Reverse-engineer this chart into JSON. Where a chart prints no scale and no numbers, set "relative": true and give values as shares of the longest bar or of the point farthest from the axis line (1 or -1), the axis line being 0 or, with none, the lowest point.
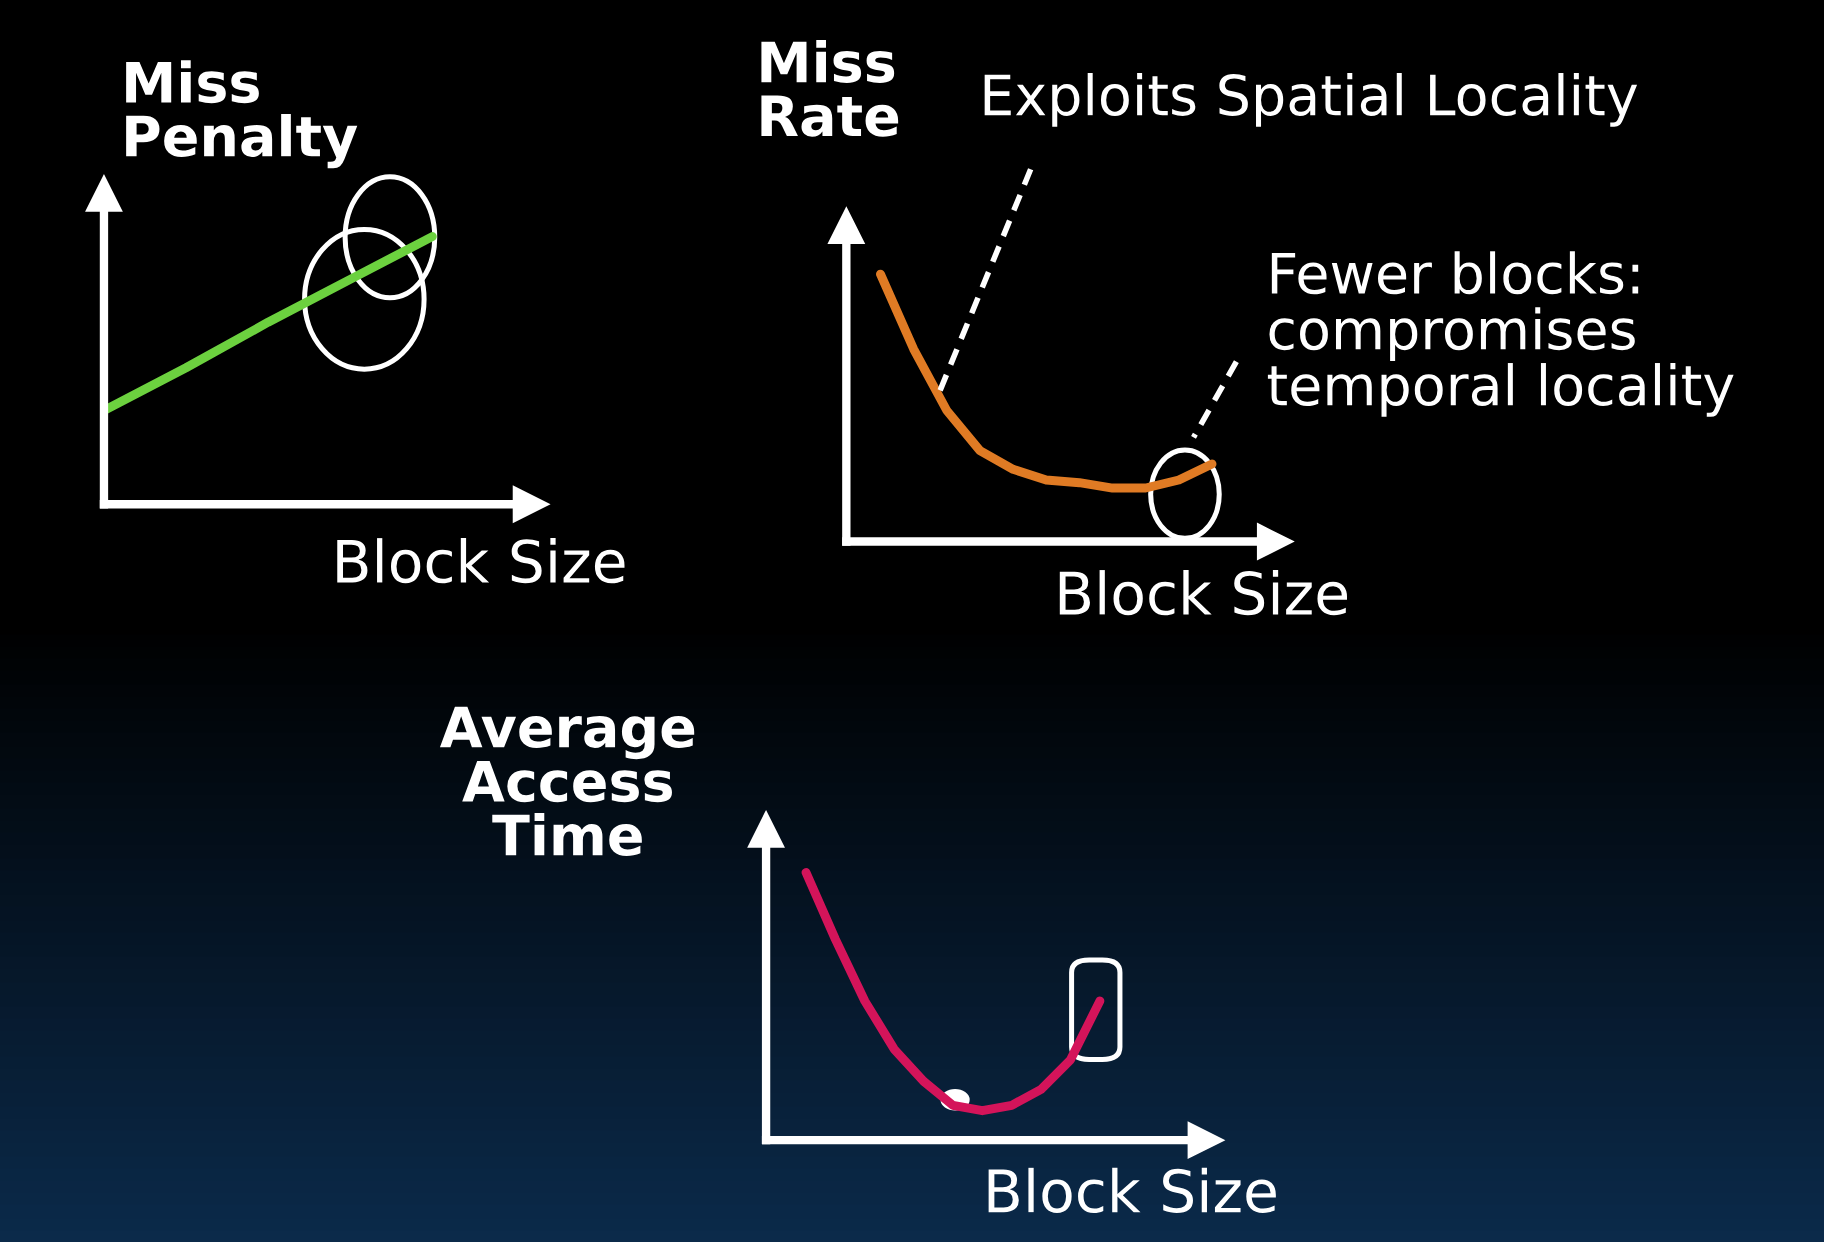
{
  "chart_data": [
    {
      "type": "line",
      "relative": true,
      "ylabel": "Miss Penalty",
      "xlabel": "Block Size",
      "categories": [
        null,
        null,
        null,
        null,
        null
      ],
      "series": [
        {
          "color": "#6cd13f",
          "values": [
            0.35,
            0.51,
            0.68,
            0.84,
            1.0
          ]
        }
      ],
      "legend": false,
      "tick_labels": false
    },
    {
      "type": "line",
      "relative": true,
      "ylabel": "Miss Rate",
      "xlabel": "Block Size",
      "categories": [
        null,
        null,
        null,
        null,
        null,
        null,
        null,
        null,
        null,
        null,
        null
      ],
      "series": [
        {
          "color": "#e07b24",
          "values": [
            1.0,
            0.72,
            0.49,
            0.34,
            0.27,
            0.23,
            0.22,
            0.2,
            0.2,
            0.23,
            0.29
          ]
        }
      ],
      "annotations": [
        "Exploits Spatial Locality",
        "Fewer blocks:\ncompromises\ntemporal locality"
      ],
      "legend": false,
      "tick_labels": false
    },
    {
      "type": "line",
      "relative": true,
      "ylabel": "Average Access Time",
      "xlabel": "Block Size",
      "categories": [
        null,
        null,
        null,
        null,
        null,
        null,
        null,
        null,
        null,
        null,
        null
      ],
      "series": [
        {
          "color": "#d4145a",
          "values": [
            1.0,
            0.75,
            0.52,
            0.34,
            0.22,
            0.13,
            0.11,
            0.13,
            0.19,
            0.3,
            0.52
          ]
        }
      ],
      "legend": false,
      "tick_labels": false
    }
  ]
}
